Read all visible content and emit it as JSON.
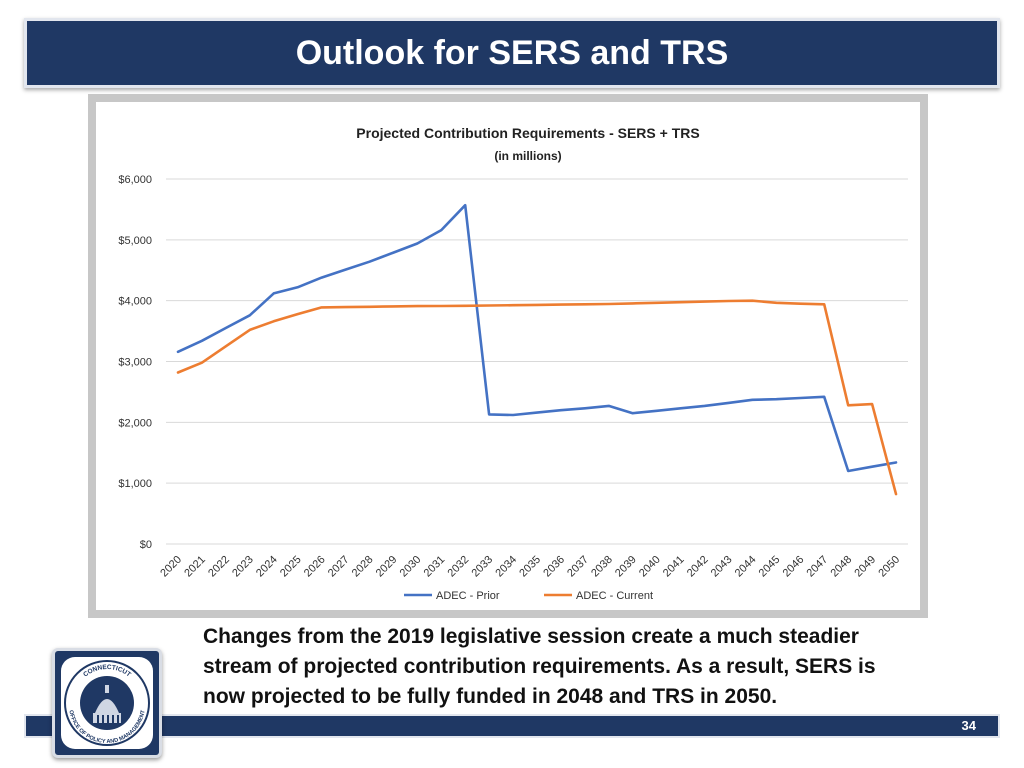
{
  "slide": {
    "title": "Outlook for SERS and TRS",
    "caption": "Changes from the 2019 legislative session create a much steadier stream of projected contribution requirements. As a result, SERS is now projected to be fully funded in 2048 and TRS in 2050.",
    "page_number": "34"
  },
  "logo": {
    "text": "CONNECTICUT OFFICE OF POLICY AND MANAGEMENT",
    "icon": "capitol-dome-seal-icon"
  },
  "colors": {
    "title_bar": "#1f3864",
    "series_prior": "#4472c4",
    "series_current": "#ed7d31"
  },
  "chart_data": {
    "type": "line",
    "title": "Projected Contribution Requirements - SERS + TRS",
    "subtitle": "(in millions)",
    "xlabel": "",
    "ylabel": "",
    "ylim": [
      0,
      6000
    ],
    "yticks": [
      0,
      1000,
      2000,
      3000,
      4000,
      5000,
      6000
    ],
    "ytick_labels": [
      "$0",
      "$1,000",
      "$2,000",
      "$3,000",
      "$4,000",
      "$5,000",
      "$6,000"
    ],
    "grid": true,
    "legend_position": "bottom",
    "categories": [
      "2020",
      "2021",
      "2022",
      "2023",
      "2024",
      "2025",
      "2026",
      "2027",
      "2028",
      "2029",
      "2030",
      "2031",
      "2032",
      "2033",
      "2034",
      "2035",
      "2036",
      "2037",
      "2038",
      "2039",
      "2040",
      "2041",
      "2042",
      "2043",
      "2044",
      "2045",
      "2046",
      "2047",
      "2048",
      "2049",
      "2050"
    ],
    "series": [
      {
        "name": "ADEC - Prior",
        "color": "#4472c4",
        "values": [
          3160,
          3340,
          3550,
          3760,
          4120,
          4220,
          4380,
          4510,
          4640,
          4790,
          4940,
          5160,
          5570,
          2130,
          2120,
          2160,
          2200,
          2230,
          2270,
          2150,
          2190,
          2230,
          2270,
          2320,
          2370,
          2380,
          2400,
          2420,
          1200,
          1270,
          1340
        ]
      },
      {
        "name": "ADEC - Current",
        "color": "#ed7d31",
        "values": [
          2820,
          2980,
          3250,
          3520,
          3660,
          3780,
          3890,
          3895,
          3900,
          3905,
          3910,
          3912,
          3915,
          3920,
          3925,
          3930,
          3935,
          3940,
          3945,
          3955,
          3965,
          3975,
          3985,
          3995,
          4000,
          3965,
          3950,
          3940,
          2280,
          2300,
          820
        ]
      }
    ]
  }
}
